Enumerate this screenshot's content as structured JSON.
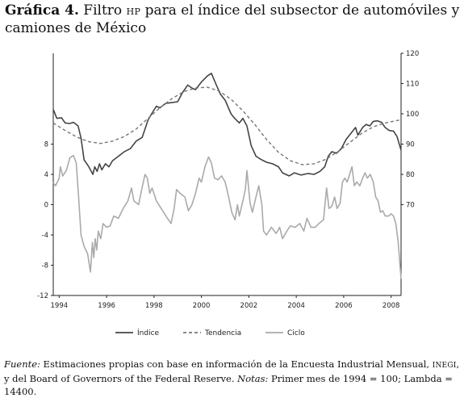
{
  "title": {
    "label": "Gráfica 4.",
    "text_a": " Filtro ",
    "hp": "HP",
    "text_b": " para el índice del subsector de automóviles y camiones de México"
  },
  "footer": {
    "fuente_label": "Fuente:",
    "fuente_a": " Estimaciones propias con base en información de la Encuesta Industrial Mensual, ",
    "inegi": "INEGI",
    "fuente_b": ", y del Board of Governors of the Federal Reserve. ",
    "notas_label": "Notas:",
    "notas_text": " Primer mes de 1994 = 100;  Lambda = 14400."
  },
  "chart_data": {
    "type": "line",
    "title": "",
    "xlabel": "",
    "ylabel_left": "",
    "ylabel_right": "",
    "x_ticks": [
      "1994",
      "1996",
      "1998",
      "2000",
      "2002",
      "2004",
      "2006",
      "2008"
    ],
    "x_range": [
      1993.75,
      2008.42
    ],
    "left_axis": {
      "range": [
        -12,
        20
      ],
      "ticks": [
        "-12",
        "-8",
        "-4",
        "0",
        "4",
        "8"
      ],
      "tick_values": [
        -12,
        -8,
        -4,
        0,
        4,
        8
      ]
    },
    "right_axis": {
      "range": [
        40,
        120
      ],
      "ticks": [
        "70",
        "80",
        "90",
        "100",
        "110",
        "120"
      ],
      "tick_values": [
        70,
        80,
        90,
        100,
        110,
        120
      ]
    },
    "grid": false,
    "legend_position": "bottom",
    "legend": [
      "Índice",
      "Tendencia",
      "Ciclo"
    ],
    "colors": {
      "indice": "#444444",
      "tendencia": "#777777",
      "ciclo": "#aaaaaa"
    },
    "series": [
      {
        "name": "Índice",
        "axis": "right",
        "style": "solid",
        "points": [
          [
            1993.75,
            101.5
          ],
          [
            1993.9,
            98.5
          ],
          [
            1994.1,
            98.7
          ],
          [
            1994.25,
            97.0
          ],
          [
            1994.45,
            96.8
          ],
          [
            1994.6,
            97.2
          ],
          [
            1994.8,
            96.0
          ],
          [
            1994.92,
            92.0
          ],
          [
            1995.05,
            84.8
          ],
          [
            1995.25,
            82.5
          ],
          [
            1995.42,
            80.0
          ],
          [
            1995.5,
            82.5
          ],
          [
            1995.6,
            81.0
          ],
          [
            1995.7,
            83.5
          ],
          [
            1995.8,
            81.5
          ],
          [
            1995.95,
            83.5
          ],
          [
            1996.1,
            82.5
          ],
          [
            1996.25,
            84.5
          ],
          [
            1996.5,
            86.0
          ],
          [
            1996.75,
            87.5
          ],
          [
            1997.0,
            88.5
          ],
          [
            1997.25,
            91.0
          ],
          [
            1997.5,
            92.2
          ],
          [
            1997.75,
            98.0
          ],
          [
            1997.9,
            100.0
          ],
          [
            1998.1,
            102.5
          ],
          [
            1998.25,
            102.0
          ],
          [
            1998.5,
            103.5
          ],
          [
            1998.75,
            103.7
          ],
          [
            1999.0,
            104.0
          ],
          [
            1999.2,
            107.0
          ],
          [
            1999.42,
            109.5
          ],
          [
            1999.6,
            108.5
          ],
          [
            1999.75,
            108.0
          ],
          [
            2000.0,
            110.5
          ],
          [
            2000.25,
            112.5
          ],
          [
            2000.42,
            113.4
          ],
          [
            2000.6,
            110.0
          ],
          [
            2000.8,
            106.5
          ],
          [
            2001.0,
            104.5
          ],
          [
            2001.25,
            100.0
          ],
          [
            2001.4,
            98.5
          ],
          [
            2001.6,
            97.0
          ],
          [
            2001.75,
            98.5
          ],
          [
            2001.92,
            96.0
          ],
          [
            2002.1,
            89.5
          ],
          [
            2002.3,
            86.0
          ],
          [
            2002.5,
            85.0
          ],
          [
            2002.75,
            84.0
          ],
          [
            2003.0,
            83.5
          ],
          [
            2003.25,
            82.5
          ],
          [
            2003.42,
            80.5
          ],
          [
            2003.7,
            79.5
          ],
          [
            2003.92,
            80.5
          ],
          [
            2004.2,
            79.8
          ],
          [
            2004.5,
            80.3
          ],
          [
            2004.75,
            80.0
          ],
          [
            2005.0,
            81.0
          ],
          [
            2005.2,
            82.5
          ],
          [
            2005.35,
            86.0
          ],
          [
            2005.5,
            87.5
          ],
          [
            2005.7,
            87.0
          ],
          [
            2005.9,
            88.5
          ],
          [
            2006.1,
            91.5
          ],
          [
            2006.3,
            93.5
          ],
          [
            2006.5,
            95.5
          ],
          [
            2006.6,
            93.0
          ],
          [
            2006.8,
            95.5
          ],
          [
            2006.95,
            96.5
          ],
          [
            2007.1,
            96.0
          ],
          [
            2007.25,
            97.5
          ],
          [
            2007.42,
            97.7
          ],
          [
            2007.6,
            97.2
          ],
          [
            2007.75,
            95.5
          ],
          [
            2007.92,
            94.5
          ],
          [
            2008.1,
            94.3
          ],
          [
            2008.25,
            92.5
          ],
          [
            2008.42,
            88.0
          ]
        ]
      },
      {
        "name": "Tendencia",
        "axis": "right",
        "style": "dashed",
        "points": [
          [
            1993.75,
            97.0
          ],
          [
            1994.25,
            94.5
          ],
          [
            1994.75,
            92.3
          ],
          [
            1995.25,
            90.8
          ],
          [
            1995.75,
            90.2
          ],
          [
            1996.25,
            91.0
          ],
          [
            1996.75,
            92.5
          ],
          [
            1997.25,
            95.0
          ],
          [
            1997.75,
            98.5
          ],
          [
            1998.25,
            102.0
          ],
          [
            1998.75,
            105.0
          ],
          [
            1999.25,
            107.3
          ],
          [
            1999.75,
            108.5
          ],
          [
            2000.25,
            108.8
          ],
          [
            2000.75,
            107.5
          ],
          [
            2001.25,
            104.8
          ],
          [
            2001.75,
            101.0
          ],
          [
            2002.25,
            96.5
          ],
          [
            2002.75,
            91.5
          ],
          [
            2003.25,
            87.3
          ],
          [
            2003.75,
            84.5
          ],
          [
            2004.25,
            83.2
          ],
          [
            2004.75,
            83.5
          ],
          [
            2005.25,
            85.0
          ],
          [
            2005.75,
            87.5
          ],
          [
            2006.25,
            90.5
          ],
          [
            2006.75,
            93.5
          ],
          [
            2007.25,
            95.7
          ],
          [
            2007.75,
            97.0
          ],
          [
            2008.25,
            97.8
          ],
          [
            2008.42,
            98.0
          ]
        ]
      },
      {
        "name": "Ciclo",
        "axis": "left",
        "style": "solid",
        "points": [
          [
            1993.75,
            2.9
          ],
          [
            1993.85,
            2.5
          ],
          [
            1994.0,
            3.5
          ],
          [
            1994.05,
            5.0
          ],
          [
            1994.15,
            3.8
          ],
          [
            1994.3,
            4.5
          ],
          [
            1994.45,
            6.2
          ],
          [
            1994.6,
            6.5
          ],
          [
            1994.72,
            5.5
          ],
          [
            1994.82,
            1.0
          ],
          [
            1994.92,
            -4.0
          ],
          [
            1995.05,
            -5.5
          ],
          [
            1995.2,
            -6.5
          ],
          [
            1995.32,
            -8.9
          ],
          [
            1995.4,
            -5.0
          ],
          [
            1995.46,
            -7.0
          ],
          [
            1995.52,
            -4.5
          ],
          [
            1995.58,
            -6.0
          ],
          [
            1995.65,
            -3.5
          ],
          [
            1995.75,
            -4.5
          ],
          [
            1995.85,
            -2.5
          ],
          [
            1996.0,
            -3.0
          ],
          [
            1996.15,
            -2.8
          ],
          [
            1996.3,
            -1.5
          ],
          [
            1996.5,
            -1.8
          ],
          [
            1996.7,
            -0.5
          ],
          [
            1996.9,
            0.5
          ],
          [
            1997.05,
            2.2
          ],
          [
            1997.15,
            0.5
          ],
          [
            1997.35,
            0.0
          ],
          [
            1997.5,
            2.3
          ],
          [
            1997.62,
            4.0
          ],
          [
            1997.72,
            3.5
          ],
          [
            1997.82,
            1.5
          ],
          [
            1997.92,
            2.2
          ],
          [
            1998.1,
            0.5
          ],
          [
            1998.3,
            -0.5
          ],
          [
            1998.5,
            -1.5
          ],
          [
            1998.72,
            -2.5
          ],
          [
            1998.85,
            -0.5
          ],
          [
            1998.95,
            2.0
          ],
          [
            1999.1,
            1.5
          ],
          [
            1999.3,
            1.0
          ],
          [
            1999.45,
            -0.8
          ],
          [
            1999.6,
            0.0
          ],
          [
            1999.75,
            1.5
          ],
          [
            1999.9,
            3.5
          ],
          [
            2000.0,
            3.0
          ],
          [
            2000.15,
            5.0
          ],
          [
            2000.3,
            6.3
          ],
          [
            2000.42,
            5.5
          ],
          [
            2000.55,
            3.5
          ],
          [
            2000.7,
            3.3
          ],
          [
            2000.85,
            3.8
          ],
          [
            2001.0,
            3.0
          ],
          [
            2001.15,
            1.0
          ],
          [
            2001.28,
            -1.0
          ],
          [
            2001.42,
            -2.0
          ],
          [
            2001.52,
            0.0
          ],
          [
            2001.6,
            -1.5
          ],
          [
            2001.75,
            0.5
          ],
          [
            2001.85,
            2.0
          ],
          [
            2001.92,
            4.5
          ],
          [
            2002.05,
            0.2
          ],
          [
            2002.15,
            -1.0
          ],
          [
            2002.3,
            1.0
          ],
          [
            2002.42,
            2.5
          ],
          [
            2002.55,
            0.0
          ],
          [
            2002.62,
            -3.5
          ],
          [
            2002.75,
            -4.0
          ],
          [
            2002.95,
            -3.0
          ],
          [
            2003.15,
            -3.8
          ],
          [
            2003.3,
            -3.0
          ],
          [
            2003.42,
            -4.5
          ],
          [
            2003.6,
            -3.5
          ],
          [
            2003.75,
            -2.8
          ],
          [
            2003.95,
            -3.0
          ],
          [
            2004.15,
            -2.5
          ],
          [
            2004.32,
            -3.5
          ],
          [
            2004.45,
            -1.8
          ],
          [
            2004.62,
            -3.0
          ],
          [
            2004.8,
            -3.0
          ],
          [
            2004.95,
            -2.5
          ],
          [
            2005.15,
            -2.0
          ],
          [
            2005.28,
            2.2
          ],
          [
            2005.38,
            -0.5
          ],
          [
            2005.5,
            -0.2
          ],
          [
            2005.62,
            1.0
          ],
          [
            2005.72,
            -0.5
          ],
          [
            2005.85,
            0.2
          ],
          [
            2005.95,
            3.0
          ],
          [
            2006.05,
            3.5
          ],
          [
            2006.15,
            3.0
          ],
          [
            2006.25,
            4.0
          ],
          [
            2006.35,
            5.0
          ],
          [
            2006.45,
            2.5
          ],
          [
            2006.55,
            3.0
          ],
          [
            2006.68,
            2.5
          ],
          [
            2006.8,
            3.5
          ],
          [
            2006.9,
            4.2
          ],
          [
            2007.0,
            3.5
          ],
          [
            2007.12,
            4.0
          ],
          [
            2007.25,
            3.0
          ],
          [
            2007.35,
            1.0
          ],
          [
            2007.45,
            0.5
          ],
          [
            2007.55,
            -1.0
          ],
          [
            2007.65,
            -0.8
          ],
          [
            2007.75,
            -1.5
          ],
          [
            2007.9,
            -1.5
          ],
          [
            2008.0,
            -1.2
          ],
          [
            2008.1,
            -1.5
          ],
          [
            2008.2,
            -2.5
          ],
          [
            2008.3,
            -5.0
          ],
          [
            2008.42,
            -9.8
          ]
        ]
      }
    ]
  }
}
